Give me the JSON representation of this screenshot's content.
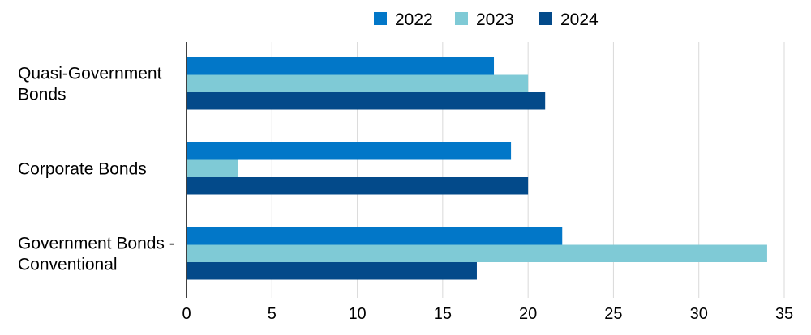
{
  "chart_data": {
    "type": "bar",
    "orientation": "horizontal",
    "title": "",
    "xlabel": "",
    "ylabel": "",
    "categories": [
      [
        "Quasi-Government",
        "Bonds"
      ],
      [
        "Corporate Bonds"
      ],
      [
        "Government Bonds -",
        "Conventional"
      ]
    ],
    "series": [
      {
        "name": "2022",
        "color": "#0277C8",
        "values": [
          18,
          19,
          22
        ]
      },
      {
        "name": "2023",
        "color": "#7FCAD6",
        "values": [
          20,
          3,
          34
        ]
      },
      {
        "name": "2024",
        "color": "#034A8A",
        "values": [
          21,
          20,
          17
        ]
      }
    ],
    "xlim": [
      0,
      35
    ],
    "xticks": [
      0,
      5,
      10,
      15,
      20,
      25,
      30,
      35
    ],
    "grid": "vertical",
    "legend_position": "top"
  }
}
